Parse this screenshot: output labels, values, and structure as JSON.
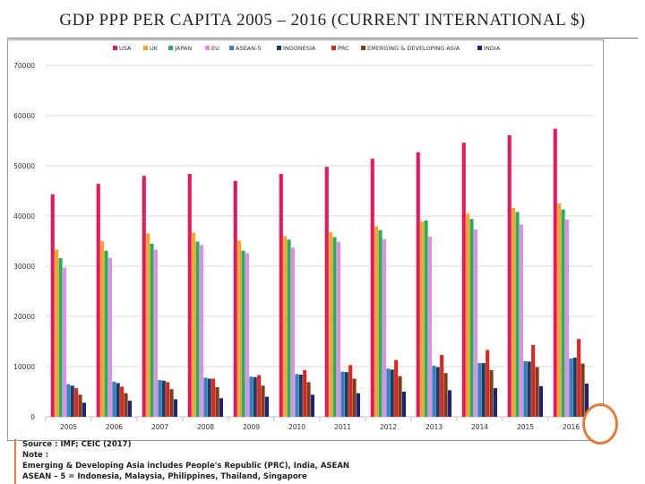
{
  "title": "GDP PPP PER CAPITA 2005 – 2016 (CURRENT INTERNATIONAL $)",
  "notes": {
    "source": "Source : IMF; CEIC (2017)",
    "note": "Note :",
    "line1": "Emerging & Developing Asia includes People's Republic (PRC), India, ASEAN",
    "line2": "ASEAN – 5 = Indonesia, Malaysia, Philippines, Thailand, Singapore"
  },
  "chart_data": {
    "type": "bar",
    "title": "",
    "xlabel": "",
    "ylabel": "",
    "ylim": [
      0,
      70000
    ],
    "yticks": [
      0,
      10000,
      20000,
      30000,
      40000,
      50000,
      60000,
      70000
    ],
    "grid": true,
    "legend_position": "top",
    "categories": [
      "2005",
      "2006",
      "2007",
      "2008",
      "2009",
      "2010",
      "2011",
      "2012",
      "2013",
      "2014",
      "2015",
      "2016"
    ],
    "series": [
      {
        "name": "USA",
        "color": "#e8175d",
        "values": [
          44300,
          46400,
          48000,
          48400,
          47000,
          48400,
          49800,
          51400,
          52700,
          54600,
          56100,
          57400
        ]
      },
      {
        "name": "UK",
        "color": "#f5a623",
        "values": [
          33300,
          35000,
          36500,
          36700,
          35100,
          36000,
          36800,
          37900,
          38900,
          40500,
          41600,
          42500
        ]
      },
      {
        "name": "JAPAN",
        "color": "#27ae60",
        "values": [
          31600,
          33100,
          34500,
          34900,
          33100,
          35300,
          35800,
          37200,
          39100,
          39400,
          40800,
          41300
        ]
      },
      {
        "name": "EU",
        "color": "#e58be8",
        "values": [
          29700,
          31700,
          33300,
          34200,
          32600,
          33700,
          34900,
          35400,
          35900,
          37300,
          38300,
          39300
        ]
      },
      {
        "name": "ASEAN-5",
        "color": "#2e86c1",
        "values": [
          6500,
          7000,
          7300,
          7800,
          8000,
          8500,
          9000,
          9600,
          10200,
          10700,
          11100,
          11600
        ]
      },
      {
        "name": "INDONESIA",
        "color": "#1f3a5f",
        "values": [
          6200,
          6700,
          7200,
          7600,
          7900,
          8400,
          8900,
          9400,
          9900,
          10700,
          11000,
          11800
        ]
      },
      {
        "name": "PRC",
        "color": "#e0261b",
        "values": [
          5700,
          6000,
          6900,
          7600,
          8300,
          9300,
          10300,
          11300,
          12300,
          13300,
          14300,
          15500
        ]
      },
      {
        "name": "EMERGING & DEVELOPING ASIA",
        "color": "#7b3f1a",
        "values": [
          4400,
          4700,
          5500,
          5900,
          6200,
          6900,
          7600,
          8100,
          8700,
          9300,
          9900,
          10600
        ]
      },
      {
        "name": "INDIA",
        "color": "#1a237e",
        "values": [
          2800,
          3200,
          3500,
          3700,
          4000,
          4400,
          4700,
          5000,
          5300,
          5700,
          6100,
          6600
        ]
      }
    ]
  }
}
